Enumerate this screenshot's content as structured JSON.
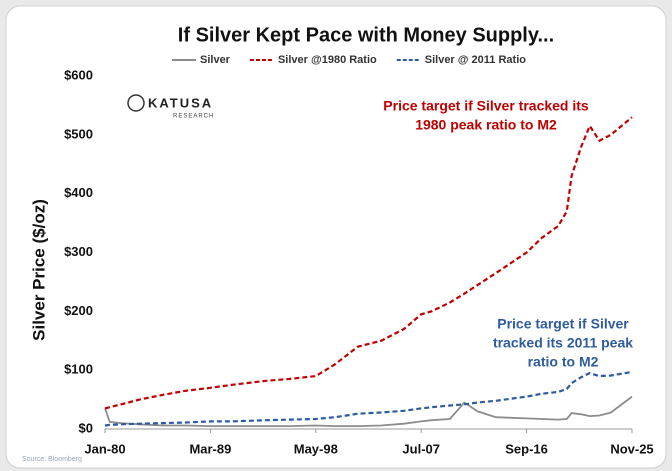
{
  "chart_data": {
    "type": "line",
    "title": "If Silver Kept Pace with Money Supply...",
    "y_label": "Silver Price ($/oz)",
    "source": "Source: Bloomberg",
    "logo": [
      "KATUSA",
      "RESEARCH"
    ],
    "x": [
      "1980-01",
      "1980-06",
      "1981-06",
      "1983-01",
      "1985-01",
      "1987-01",
      "1989-03",
      "1991-01",
      "1994-01",
      "1996-01",
      "1998-05",
      "2000-01",
      "2002-01",
      "2004-01",
      "2006-01",
      "2007-07",
      "2008-06",
      "2010-01",
      "2011-04",
      "2012-06",
      "2014-01",
      "2016-09",
      "2018-01",
      "2019-06",
      "2020-03",
      "2020-08",
      "2021-06",
      "2022-03",
      "2023-01",
      "2024-01",
      "2025-11"
    ],
    "xlim": [
      "1980-01",
      "2025-11"
    ],
    "xticks": [
      {
        "value": "1980-01",
        "label": "Jan-80"
      },
      {
        "value": "1989-03",
        "label": "Mar-89"
      },
      {
        "value": "1998-05",
        "label": "May-98"
      },
      {
        "value": "2007-07",
        "label": "Jul-07"
      },
      {
        "value": "2016-09",
        "label": "Sep-16"
      },
      {
        "value": "2025-11",
        "label": "Nov-25"
      }
    ],
    "ylim": [
      0,
      600
    ],
    "yticks": [
      {
        "value": 0,
        "label": "$0"
      },
      {
        "value": 100,
        "label": "$100"
      },
      {
        "value": 200,
        "label": "$200"
      },
      {
        "value": 300,
        "label": "$300"
      },
      {
        "value": 400,
        "label": "$400"
      },
      {
        "value": 500,
        "label": "$500"
      },
      {
        "value": 600,
        "label": "$600"
      }
    ],
    "grid": false,
    "series": [
      {
        "name": "Silver",
        "color": "#8c8c8c",
        "style": "solid",
        "values": [
          35,
          12,
          10,
          8,
          6,
          6,
          5,
          5,
          5,
          5,
          6,
          5,
          5,
          6,
          9,
          13,
          15,
          17,
          45,
          30,
          20,
          18,
          17,
          16,
          17,
          27,
          25,
          22,
          23,
          28,
          55
        ]
      },
      {
        "name": "Silver @1980 Ratio",
        "color": "#c00000",
        "style": "dashed",
        "values": [
          35,
          37,
          42,
          50,
          58,
          65,
          70,
          75,
          82,
          85,
          90,
          110,
          140,
          150,
          170,
          195,
          200,
          215,
          230,
          245,
          265,
          300,
          325,
          345,
          370,
          430,
          480,
          515,
          490,
          500,
          530
        ]
      },
      {
        "name": "Silver @ 2011 Ratio",
        "color": "#2e5c9e",
        "style": "dashed",
        "values": [
          6,
          7,
          8,
          9,
          10,
          11,
          13,
          13,
          15,
          16,
          17,
          20,
          26,
          28,
          31,
          35,
          37,
          40,
          42,
          45,
          48,
          55,
          60,
          63,
          68,
          78,
          88,
          95,
          90,
          91,
          97
        ]
      }
    ],
    "annotations": [
      {
        "lines": [
          "Price target if Silver tracked its",
          "1980 peak ratio to M2"
        ],
        "color": "#c00000"
      },
      {
        "lines": [
          "Price target if Silver",
          "tracked its 2011 peak",
          "ratio to M2"
        ],
        "color": "#2e5c9e"
      }
    ]
  }
}
